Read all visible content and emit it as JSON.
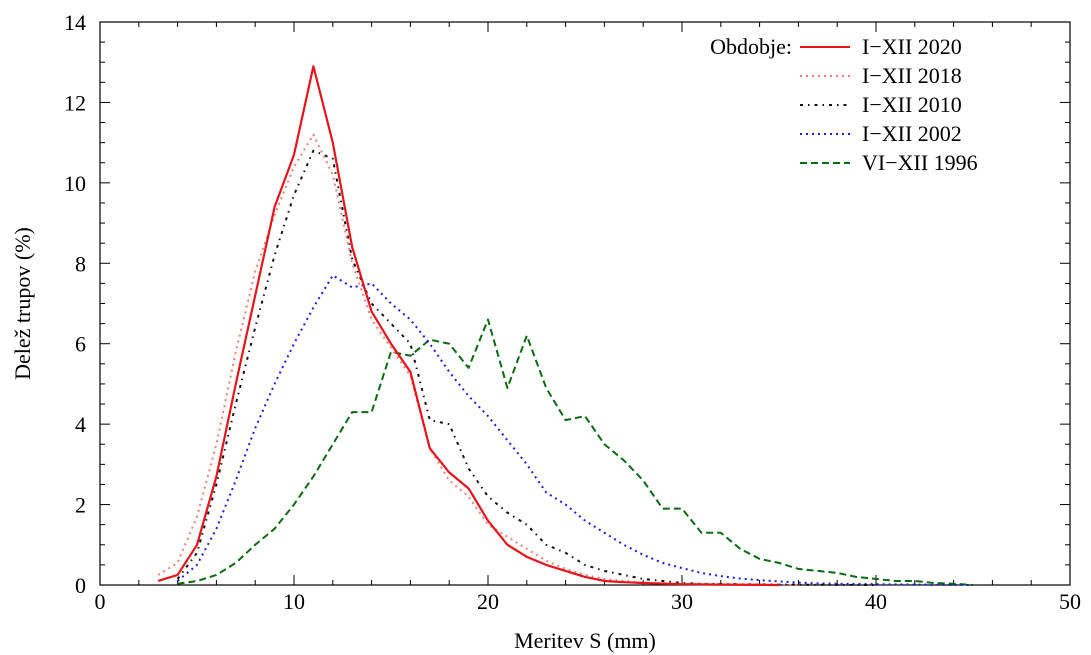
{
  "chart_data": {
    "type": "line",
    "xlabel": "Meritev S (mm)",
    "ylabel": "Delež trupov (%)",
    "xlim": [
      0,
      50
    ],
    "ylim": [
      0,
      14
    ],
    "xticks": [
      0,
      10,
      20,
      30,
      40,
      50
    ],
    "yticks": [
      0,
      2,
      4,
      6,
      8,
      10,
      12,
      14
    ],
    "grid": false,
    "legend_title": "Obdobje:",
    "legend_position": "top-right",
    "series": [
      {
        "name": "I−XII 2020",
        "color": "#e8141c",
        "style": "solid",
        "points": [
          [
            3,
            0.1
          ],
          [
            4,
            0.25
          ],
          [
            5,
            1.0
          ],
          [
            6,
            2.7
          ],
          [
            7,
            5.0
          ],
          [
            8,
            7.2
          ],
          [
            9,
            9.4
          ],
          [
            10,
            10.7
          ],
          [
            11,
            12.9
          ],
          [
            12,
            11.0
          ],
          [
            13,
            8.4
          ],
          [
            14,
            6.8
          ],
          [
            15,
            6.0
          ],
          [
            16,
            5.3
          ],
          [
            17,
            3.4
          ],
          [
            18,
            2.8
          ],
          [
            19,
            2.4
          ],
          [
            20,
            1.6
          ],
          [
            21,
            1.0
          ],
          [
            22,
            0.7
          ],
          [
            23,
            0.5
          ],
          [
            24,
            0.35
          ],
          [
            25,
            0.2
          ],
          [
            26,
            0.1
          ],
          [
            27,
            0.07
          ],
          [
            28,
            0.05
          ],
          [
            30,
            0.02
          ],
          [
            32,
            0.01
          ],
          [
            35,
            0.0
          ]
        ]
      },
      {
        "name": "I−XII 2018",
        "color": "#f08070",
        "style": "dotted",
        "points": [
          [
            3,
            0.25
          ],
          [
            4,
            0.55
          ],
          [
            5,
            1.7
          ],
          [
            6,
            3.5
          ],
          [
            7,
            5.8
          ],
          [
            8,
            7.8
          ],
          [
            9,
            9.2
          ],
          [
            10,
            10.4
          ],
          [
            11,
            11.2
          ],
          [
            12,
            10.2
          ],
          [
            13,
            8.0
          ],
          [
            14,
            6.6
          ],
          [
            15,
            5.9
          ],
          [
            16,
            5.2
          ],
          [
            17,
            3.4
          ],
          [
            18,
            2.6
          ],
          [
            19,
            2.2
          ],
          [
            20,
            1.5
          ],
          [
            21,
            1.2
          ],
          [
            22,
            0.9
          ],
          [
            23,
            0.6
          ],
          [
            24,
            0.4
          ],
          [
            25,
            0.25
          ],
          [
            26,
            0.15
          ],
          [
            27,
            0.1
          ],
          [
            28,
            0.06
          ],
          [
            30,
            0.03
          ],
          [
            33,
            0.01
          ],
          [
            36,
            0.0
          ]
        ]
      },
      {
        "name": "I−XII 2010",
        "color": "#111111",
        "style": "dashdot",
        "points": [
          [
            4,
            0.15
          ],
          [
            5,
            0.8
          ],
          [
            6,
            2.5
          ],
          [
            7,
            4.5
          ],
          [
            8,
            6.4
          ],
          [
            9,
            8.2
          ],
          [
            10,
            9.7
          ],
          [
            11,
            10.8
          ],
          [
            12,
            10.6
          ],
          [
            13,
            8.1
          ],
          [
            14,
            7.0
          ],
          [
            15,
            6.5
          ],
          [
            16,
            6.0
          ],
          [
            17,
            4.1
          ],
          [
            18,
            4.0
          ],
          [
            19,
            2.9
          ],
          [
            20,
            2.2
          ],
          [
            21,
            1.8
          ],
          [
            22,
            1.5
          ],
          [
            23,
            1.0
          ],
          [
            24,
            0.8
          ],
          [
            25,
            0.5
          ],
          [
            26,
            0.35
          ],
          [
            27,
            0.25
          ],
          [
            28,
            0.15
          ],
          [
            29,
            0.1
          ],
          [
            30,
            0.05
          ],
          [
            31,
            0.03
          ],
          [
            33,
            0.02
          ],
          [
            35,
            0.01
          ],
          [
            40,
            0.0
          ]
        ]
      },
      {
        "name": "I−XII 2002",
        "color": "#1a1ae6",
        "style": "dotted",
        "points": [
          [
            4,
            0.1
          ],
          [
            5,
            0.5
          ],
          [
            6,
            1.4
          ],
          [
            7,
            2.6
          ],
          [
            8,
            3.9
          ],
          [
            9,
            5.0
          ],
          [
            10,
            6.0
          ],
          [
            11,
            6.9
          ],
          [
            12,
            7.7
          ],
          [
            13,
            7.4
          ],
          [
            14,
            7.5
          ],
          [
            15,
            7.0
          ],
          [
            16,
            6.6
          ],
          [
            17,
            6.0
          ],
          [
            18,
            5.3
          ],
          [
            19,
            4.7
          ],
          [
            20,
            4.2
          ],
          [
            21,
            3.6
          ],
          [
            22,
            3.0
          ],
          [
            23,
            2.3
          ],
          [
            24,
            2.0
          ],
          [
            25,
            1.6
          ],
          [
            26,
            1.3
          ],
          [
            27,
            1.0
          ],
          [
            28,
            0.75
          ],
          [
            29,
            0.55
          ],
          [
            30,
            0.42
          ],
          [
            31,
            0.3
          ],
          [
            32,
            0.22
          ],
          [
            33,
            0.16
          ],
          [
            34,
            0.12
          ],
          [
            35,
            0.09
          ],
          [
            36,
            0.06
          ],
          [
            37,
            0.04
          ],
          [
            38,
            0.03
          ],
          [
            40,
            0.02
          ],
          [
            42,
            0.01
          ],
          [
            45,
            0.0
          ]
        ]
      },
      {
        "name": "VI−XII 1996",
        "color": "#0a6b12",
        "style": "dashed",
        "points": [
          [
            4,
            0.03
          ],
          [
            5,
            0.1
          ],
          [
            6,
            0.25
          ],
          [
            7,
            0.55
          ],
          [
            8,
            1.0
          ],
          [
            9,
            1.4
          ],
          [
            10,
            2.0
          ],
          [
            11,
            2.7
          ],
          [
            12,
            3.5
          ],
          [
            13,
            4.3
          ],
          [
            14,
            4.3
          ],
          [
            15,
            5.8
          ],
          [
            16,
            5.7
          ],
          [
            17,
            6.1
          ],
          [
            18,
            6.0
          ],
          [
            19,
            5.4
          ],
          [
            20,
            6.6
          ],
          [
            21,
            4.9
          ],
          [
            22,
            6.2
          ],
          [
            23,
            4.9
          ],
          [
            24,
            4.1
          ],
          [
            25,
            4.2
          ],
          [
            26,
            3.5
          ],
          [
            27,
            3.1
          ],
          [
            28,
            2.6
          ],
          [
            29,
            1.9
          ],
          [
            30,
            1.9
          ],
          [
            31,
            1.3
          ],
          [
            32,
            1.3
          ],
          [
            33,
            0.9
          ],
          [
            34,
            0.65
          ],
          [
            35,
            0.55
          ],
          [
            36,
            0.4
          ],
          [
            37,
            0.35
          ],
          [
            38,
            0.3
          ],
          [
            39,
            0.2
          ],
          [
            40,
            0.15
          ],
          [
            41,
            0.1
          ],
          [
            42,
            0.1
          ],
          [
            43,
            0.05
          ],
          [
            44,
            0.03
          ],
          [
            45,
            0.0
          ]
        ]
      }
    ]
  }
}
